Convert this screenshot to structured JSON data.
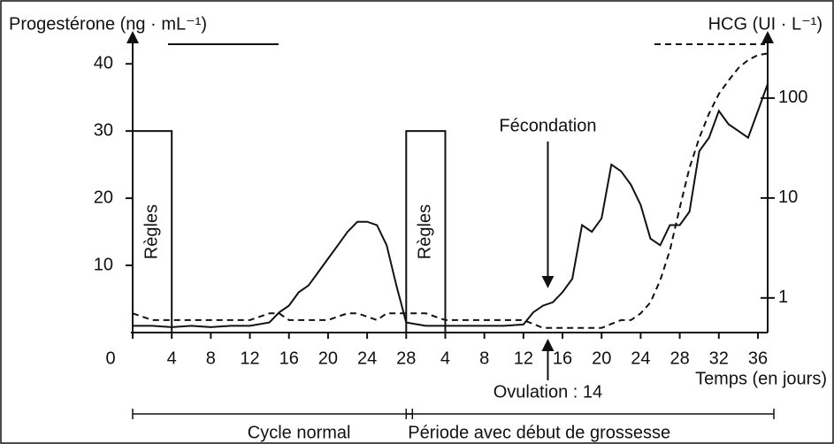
{
  "chart_data": {
    "type": "line",
    "x": [
      0,
      2,
      4,
      6,
      8,
      10,
      12,
      14,
      15,
      16,
      17,
      18,
      19,
      20,
      21,
      22,
      23,
      24,
      25,
      26,
      27,
      28,
      30,
      32,
      34,
      36,
      38,
      40,
      41,
      42,
      43,
      44,
      45,
      46,
      47,
      48,
      49,
      50,
      51,
      52,
      53,
      54,
      55,
      56,
      57,
      58,
      59,
      60,
      61,
      62,
      63,
      64,
      65
    ],
    "series": [
      {
        "name": "Progestérone (ng · mL⁻¹)",
        "color": "#111111",
        "linestyle": "solid",
        "values": [
          1,
          1,
          0.8,
          1,
          0.8,
          1,
          1,
          1.5,
          3,
          4,
          6,
          7,
          9,
          11,
          13,
          15,
          16.5,
          16.5,
          16,
          13,
          7,
          1.5,
          1,
          1,
          1,
          1,
          1,
          1.2,
          3,
          4,
          4.5,
          6,
          8,
          16,
          15,
          17,
          25,
          24,
          22,
          19,
          14,
          13,
          16,
          16,
          18,
          27,
          29,
          33,
          31,
          30,
          29,
          33,
          37
        ]
      },
      {
        "name": "HCG (UI · L⁻¹)",
        "color": "#111111",
        "linestyle": "dashed",
        "axis": "y2",
        "values": [
          0.7,
          0.6,
          0.6,
          0.6,
          0.6,
          0.6,
          0.6,
          0.7,
          0.7,
          0.6,
          0.6,
          0.6,
          0.6,
          0.6,
          0.65,
          0.7,
          0.7,
          0.65,
          0.6,
          0.7,
          0.7,
          0.7,
          0.7,
          0.6,
          0.6,
          0.6,
          0.6,
          0.6,
          0.55,
          0.5,
          0.5,
          0.5,
          0.5,
          0.5,
          0.5,
          0.5,
          0.55,
          0.6,
          0.6,
          0.7,
          0.9,
          1.5,
          3,
          8,
          20,
          40,
          70,
          110,
          150,
          200,
          240,
          270,
          280
        ]
      }
    ],
    "xlabel": "Temps (en jours)",
    "xlim": [
      0,
      65
    ],
    "xticks": [
      0,
      4,
      8,
      12,
      16,
      20,
      24,
      28,
      {
        "value": 32,
        "label": "4"
      },
      {
        "value": 36,
        "label": "8"
      },
      {
        "value": 40,
        "label": "12"
      },
      {
        "value": 44,
        "label": "16"
      },
      {
        "value": 48,
        "label": "20"
      },
      {
        "value": 52,
        "label": "24"
      },
      {
        "value": 56,
        "label": "28"
      },
      {
        "value": 60,
        "label": "32"
      },
      {
        "value": 64,
        "label": "36"
      }
    ],
    "ylim": [
      0,
      42
    ],
    "yticks": [
      10,
      20,
      30,
      40
    ],
    "y2lim": [
      0.45,
      300
    ],
    "y2ticks": [
      1,
      10,
      100
    ],
    "y2scale": "log",
    "periods": [
      {
        "label": "Règles",
        "start": 0,
        "end": 4,
        "height": 30
      },
      {
        "label": "Règles",
        "start": 28,
        "end": 32,
        "height": 30
      }
    ],
    "annotations": [
      {
        "text": "Fécondation",
        "x": 42.5,
        "y": 7,
        "side": "above"
      },
      {
        "text": "Ovulation : 14",
        "x": 42.5,
        "side": "below"
      }
    ],
    "phases": [
      {
        "label": "Cycle normal",
        "start": 0,
        "end": 28
      },
      {
        "label": "Période avec début de grossesse",
        "start": 28,
        "end": 65
      }
    ]
  }
}
